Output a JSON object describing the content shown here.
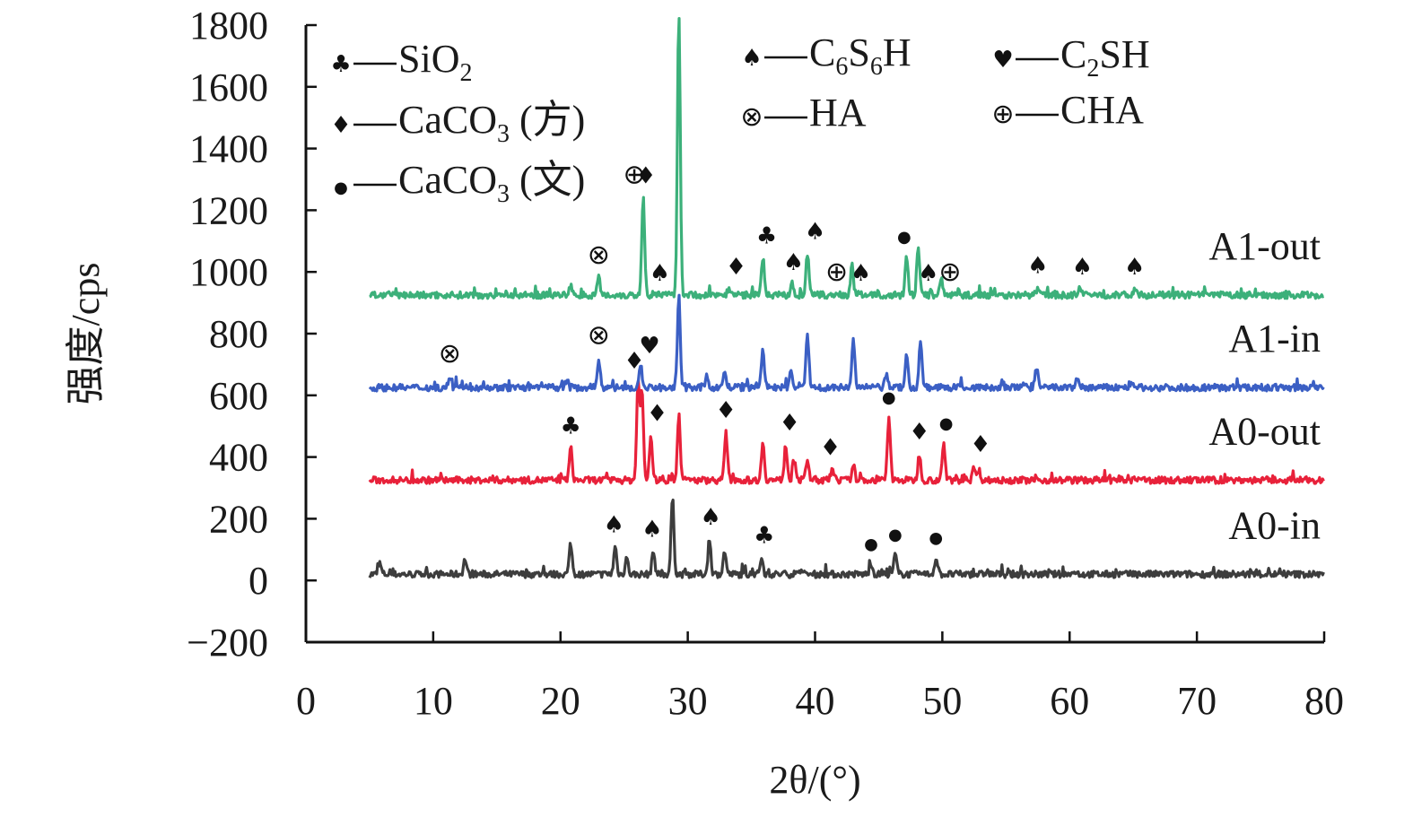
{
  "chart_data": {
    "type": "line",
    "xlabel": "2θ/(°)",
    "ylabel": "强度/cps",
    "xlim": [
      0,
      80
    ],
    "ylim": [
      -200,
      1800
    ],
    "xticks": [
      0,
      10,
      20,
      30,
      40,
      50,
      60,
      70,
      80
    ],
    "yticks": [
      -200,
      0,
      200,
      400,
      600,
      800,
      1000,
      1200,
      1400,
      1600,
      1800
    ],
    "xtick_labels": [
      "0",
      "10",
      "20",
      "30",
      "40",
      "50",
      "60",
      "70",
      "80"
    ],
    "ytick_labels": [
      "−200",
      "0",
      "200",
      "400",
      "600",
      "800",
      "1000",
      "1200",
      "1400",
      "1600",
      "1800"
    ],
    "grid": false,
    "x_range_data": [
      5,
      80
    ],
    "series": [
      {
        "name": "A0-in",
        "color": "#3d3d3d",
        "baseline": 20,
        "peaks": [
          [
            5.8,
            55
          ],
          [
            12.5,
            70
          ],
          [
            20.8,
            120
          ],
          [
            24.3,
            110
          ],
          [
            25.2,
            75
          ],
          [
            27.3,
            95
          ],
          [
            28.8,
            265
          ],
          [
            31.7,
            135
          ],
          [
            32.9,
            95
          ],
          [
            35.8,
            75
          ],
          [
            38.8,
            35
          ],
          [
            44.4,
            55
          ],
          [
            46.3,
            85
          ],
          [
            49.5,
            75
          ],
          [
            53.5,
            30
          ],
          [
            60.5,
            30
          ]
        ]
      },
      {
        "name": "A0-out",
        "color": "#e8213a",
        "baseline": 325,
        "peaks": [
          [
            20.8,
            430
          ],
          [
            26.1,
            640
          ],
          [
            26.4,
            610
          ],
          [
            27.1,
            470
          ],
          [
            29.3,
            540
          ],
          [
            33.0,
            480
          ],
          [
            35.9,
            450
          ],
          [
            37.7,
            440
          ],
          [
            38.4,
            390
          ],
          [
            39.4,
            395
          ],
          [
            41.4,
            360
          ],
          [
            43.0,
            375
          ],
          [
            45.8,
            530
          ],
          [
            48.2,
            410
          ],
          [
            50.1,
            445
          ],
          [
            52.5,
            370
          ],
          [
            52.9,
            355
          ]
        ]
      },
      {
        "name": "A1-in",
        "color": "#3b5fc4",
        "baseline": 625,
        "peaks": [
          [
            11.3,
            660
          ],
          [
            20.5,
            650
          ],
          [
            23.0,
            720
          ],
          [
            26.3,
            690
          ],
          [
            29.3,
            915
          ],
          [
            31.5,
            660
          ],
          [
            32.9,
            680
          ],
          [
            35.9,
            755
          ],
          [
            38.1,
            675
          ],
          [
            39.4,
            800
          ],
          [
            43.0,
            780
          ],
          [
            45.6,
            670
          ],
          [
            47.2,
            730
          ],
          [
            48.3,
            770
          ],
          [
            56.5,
            640
          ],
          [
            57.4,
            690
          ],
          [
            60.6,
            660
          ],
          [
            64.8,
            640
          ]
        ]
      },
      {
        "name": "A1-out",
        "color": "#3cb07a",
        "baseline": 925,
        "peaks": [
          [
            20.8,
            955
          ],
          [
            23.0,
            980
          ],
          [
            26.5,
            1240
          ],
          [
            29.3,
            1835
          ],
          [
            33.2,
            945
          ],
          [
            35.9,
            1045
          ],
          [
            38.2,
            960
          ],
          [
            39.4,
            1060
          ],
          [
            42.9,
            1025
          ],
          [
            47.2,
            1050
          ],
          [
            48.1,
            1075
          ],
          [
            49.9,
            980
          ],
          [
            57.5,
            950
          ],
          [
            60.8,
            945
          ],
          [
            65.1,
            945
          ]
        ]
      }
    ],
    "legend": {
      "placement": "top",
      "entries": [
        {
          "symbol": "♣",
          "label": "SiO",
          "sub": "2",
          "tail": ""
        },
        {
          "symbol": "♦",
          "label": "CaCO",
          "sub": "3",
          "tail": " (方)"
        },
        {
          "symbol": "●",
          "label": "CaCO",
          "sub": "3",
          "tail": " (文)"
        },
        {
          "symbol": "♠",
          "label": "C",
          "sub": "6",
          "tail": "S",
          "sub2": "6",
          "tail2": "H"
        },
        {
          "symbol": "⊗",
          "label": "HA",
          "sub": "",
          "tail": ""
        },
        {
          "symbol": "♥",
          "label": "C",
          "sub": "2",
          "tail": "SH"
        },
        {
          "symbol": "⊕",
          "label": "CHA",
          "sub": "",
          "tail": ""
        }
      ]
    },
    "annotations": [
      {
        "series": "A1-out",
        "items": [
          [
            23.0,
            "⊗"
          ],
          [
            25.8,
            "⊕"
          ],
          [
            27.8,
            "♠"
          ],
          [
            26.7,
            "♦"
          ],
          [
            33.8,
            "♦"
          ],
          [
            36.2,
            "♣"
          ],
          [
            38.3,
            "♠"
          ],
          [
            40.0,
            "♠"
          ],
          [
            41.7,
            "⊕"
          ],
          [
            43.6,
            "♠"
          ],
          [
            47.0,
            "●"
          ],
          [
            48.9,
            "♠"
          ],
          [
            50.6,
            "⊕"
          ],
          [
            57.5,
            "♠"
          ],
          [
            61.0,
            "♠"
          ],
          [
            65.1,
            "♠"
          ]
        ]
      },
      {
        "series": "A1-in",
        "items": [
          [
            11.3,
            "⊗"
          ],
          [
            23.0,
            "⊗"
          ],
          [
            27.0,
            "♥"
          ]
        ]
      },
      {
        "series": "A0-out",
        "items": [
          [
            20.8,
            "♣"
          ],
          [
            25.8,
            "♦"
          ],
          [
            27.6,
            "♦"
          ],
          [
            33.0,
            "♦"
          ],
          [
            38.0,
            "♦"
          ],
          [
            41.2,
            "♦"
          ],
          [
            45.8,
            "●"
          ],
          [
            48.2,
            "♦"
          ],
          [
            50.3,
            "●"
          ],
          [
            53.0,
            "♦"
          ]
        ]
      },
      {
        "series": "A0-in",
        "items": [
          [
            24.2,
            "♠"
          ],
          [
            27.2,
            "♠"
          ],
          [
            31.8,
            "♠"
          ],
          [
            36.0,
            "♣"
          ],
          [
            44.4,
            "●"
          ],
          [
            46.3,
            "●"
          ],
          [
            49.5,
            "●"
          ]
        ]
      }
    ]
  }
}
